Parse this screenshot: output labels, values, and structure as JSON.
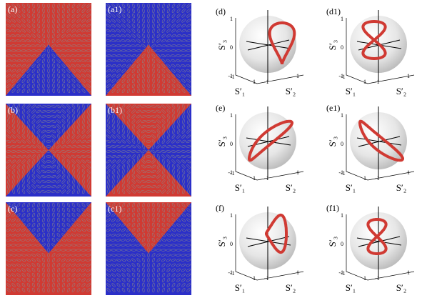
{
  "left_panels": [
    {
      "label": "(a)"
    },
    {
      "label": "(a1)"
    },
    {
      "label": "(b)"
    },
    {
      "label": "(b1)"
    },
    {
      "label": "(c)"
    },
    {
      "label": "(c1)"
    }
  ],
  "sphere_panels": [
    {
      "label": "(d)",
      "s1": "S′₁",
      "s2": "S′₂",
      "s3": "S′₃",
      "z_ticks": [
        "1",
        "0",
        "-1"
      ],
      "s1_ticks": [
        "-1",
        "1"
      ],
      "s2_ticks": [
        "-1",
        "1"
      ]
    },
    {
      "label": "(d1)",
      "s1": "S′₁",
      "s2": "S′₂",
      "s3": "S′₃",
      "z_ticks": [
        "1",
        "0",
        "-1"
      ],
      "s1_ticks": [
        "-1",
        "1"
      ],
      "s2_ticks": [
        "-1",
        "1"
      ]
    },
    {
      "label": "(e)",
      "s1": "S′₁",
      "s2": "S′₂",
      "s3": "S′₃",
      "z_ticks": [
        "1",
        "0",
        "-1"
      ],
      "s1_ticks": [
        "-1",
        "1"
      ],
      "s2_ticks": [
        "-1",
        "1"
      ]
    },
    {
      "label": "(e1)",
      "s1": "S′₁",
      "s2": "S′₂",
      "s3": "S′₃",
      "z_ticks": [
        "1",
        "0",
        "-1"
      ],
      "s1_ticks": [
        "-1",
        "1"
      ],
      "s2_ticks": [
        "-1",
        "1"
      ]
    },
    {
      "label": "(f)",
      "s1": "S′₁",
      "s2": "S′₂",
      "s3": "S′₃",
      "z_ticks": [
        "1",
        "0",
        "-1"
      ],
      "s1_ticks": [
        "-1",
        "1"
      ],
      "s2_ticks": [
        "-1",
        "1"
      ]
    },
    {
      "label": "(f1)",
      "s1": "S′₁",
      "s2": "S′₂",
      "s3": "S′₃",
      "z_ticks": [
        "1",
        "0",
        "-1"
      ],
      "s1_ticks": [
        "-1",
        "1"
      ],
      "s2_ticks": [
        "-1",
        "1"
      ]
    }
  ]
}
